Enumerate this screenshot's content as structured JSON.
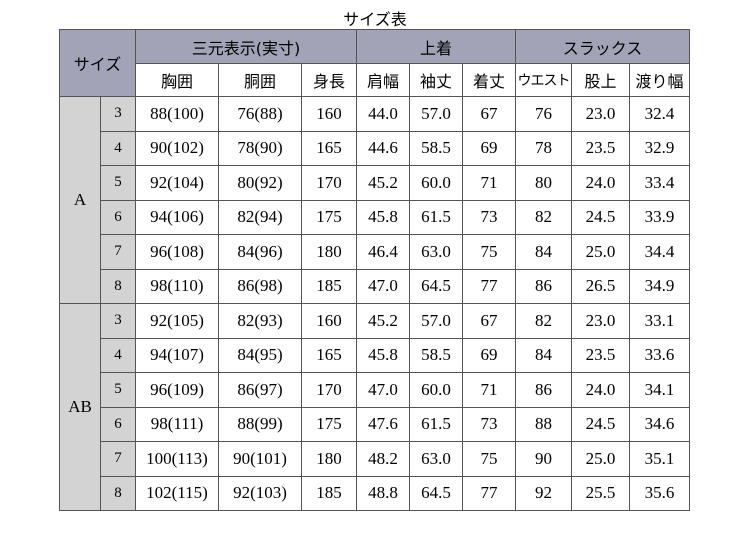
{
  "title": "サイズ表",
  "header": {
    "size_label": "サイズ",
    "groups": [
      "三元表示(実寸)",
      "上着",
      "スラックス"
    ],
    "columns": [
      "胸囲",
      "胴囲",
      "身長",
      "肩幅",
      "袖丈",
      "着丈",
      "ウエスト",
      "股上",
      "渡り幅"
    ]
  },
  "groups": [
    {
      "label": "A",
      "rows": [
        {
          "size": "3",
          "values": [
            "88(100)",
            "76(88)",
            "160",
            "44.0",
            "57.0",
            "67",
            "76",
            "23.0",
            "32.4"
          ]
        },
        {
          "size": "4",
          "values": [
            "90(102)",
            "78(90)",
            "165",
            "44.6",
            "58.5",
            "69",
            "78",
            "23.5",
            "32.9"
          ]
        },
        {
          "size": "5",
          "values": [
            "92(104)",
            "80(92)",
            "170",
            "45.2",
            "60.0",
            "71",
            "80",
            "24.0",
            "33.4"
          ]
        },
        {
          "size": "6",
          "values": [
            "94(106)",
            "82(94)",
            "175",
            "45.8",
            "61.5",
            "73",
            "82",
            "24.5",
            "33.9"
          ]
        },
        {
          "size": "7",
          "values": [
            "96(108)",
            "84(96)",
            "180",
            "46.4",
            "63.0",
            "75",
            "84",
            "25.0",
            "34.4"
          ]
        },
        {
          "size": "8",
          "values": [
            "98(110)",
            "86(98)",
            "185",
            "47.0",
            "64.5",
            "77",
            "86",
            "26.5",
            "34.9"
          ]
        }
      ]
    },
    {
      "label": "AB",
      "rows": [
        {
          "size": "3",
          "values": [
            "92(105)",
            "82(93)",
            "160",
            "45.2",
            "57.0",
            "67",
            "82",
            "23.0",
            "33.1"
          ]
        },
        {
          "size": "4",
          "values": [
            "94(107)",
            "84(95)",
            "165",
            "45.8",
            "58.5",
            "69",
            "84",
            "23.5",
            "33.6"
          ]
        },
        {
          "size": "5",
          "values": [
            "96(109)",
            "86(97)",
            "170",
            "47.0",
            "60.0",
            "71",
            "86",
            "24.0",
            "34.1"
          ]
        },
        {
          "size": "6",
          "values": [
            "98(111)",
            "88(99)",
            "175",
            "47.6",
            "61.5",
            "73",
            "88",
            "24.5",
            "34.6"
          ]
        },
        {
          "size": "7",
          "values": [
            "100(113)",
            "90(101)",
            "180",
            "48.2",
            "63.0",
            "75",
            "90",
            "25.0",
            "35.1"
          ]
        },
        {
          "size": "8",
          "values": [
            "102(115)",
            "92(103)",
            "185",
            "48.8",
            "64.5",
            "77",
            "92",
            "25.5",
            "35.6"
          ]
        }
      ]
    }
  ]
}
